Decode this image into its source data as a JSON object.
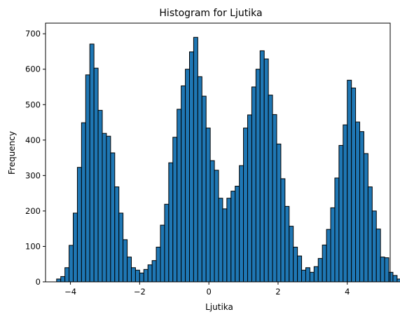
{
  "chart_data": {
    "type": "bar",
    "title": "Histogram for Ljutika",
    "xlabel": "Ljutika",
    "ylabel": "Frequency",
    "xlim": [
      -4.72,
      5.24
    ],
    "ylim": [
      0,
      730
    ],
    "xticks": [
      -4,
      -2,
      0,
      2,
      4
    ],
    "yticks": [
      0,
      100,
      200,
      300,
      400,
      500,
      600,
      700
    ],
    "bin_start": -4.4,
    "bin_width": 0.12,
    "values": [
      8,
      15,
      40,
      103,
      194,
      323,
      449,
      584,
      671,
      603,
      484,
      419,
      411,
      364,
      268,
      194,
      119,
      70,
      40,
      33,
      25,
      35,
      48,
      60,
      98,
      160,
      219,
      336,
      408,
      487,
      553,
      600,
      649,
      690,
      579,
      524,
      434,
      342,
      315,
      236,
      206,
      236,
      256,
      270,
      328,
      434,
      471,
      550,
      600,
      652,
      629,
      527,
      472,
      389,
      291,
      213,
      157,
      98,
      73,
      33,
      40,
      27,
      43,
      66,
      104,
      148,
      209,
      293,
      385,
      443,
      569,
      547,
      451,
      424,
      362,
      268,
      200,
      149,
      70,
      68,
      27,
      18,
      8,
      5
    ]
  }
}
